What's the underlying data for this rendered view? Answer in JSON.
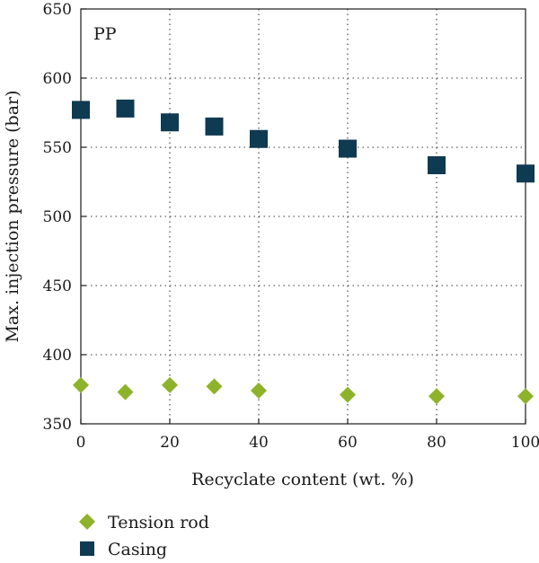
{
  "chart_data": {
    "type": "scatter",
    "panel_label": "PP",
    "xlabel": "Recyclate content (wt. %)",
    "ylabel": "Max. injection pressure (bar)",
    "xlim": [
      0,
      100
    ],
    "ylim": [
      350,
      650
    ],
    "x_ticks": [
      0,
      20,
      40,
      60,
      80,
      100
    ],
    "y_ticks": [
      350,
      400,
      450,
      500,
      550,
      600,
      650
    ],
    "grid": true,
    "legend_position": "below",
    "series": [
      {
        "name": "Tension rod",
        "marker": "diamond",
        "color": "#8db32a",
        "x": [
          0,
          10,
          20,
          30,
          40,
          60,
          80,
          100
        ],
        "y": [
          378,
          373,
          378,
          377,
          374,
          371,
          370,
          370
        ]
      },
      {
        "name": "Casing",
        "marker": "square",
        "color": "#0e3a52",
        "x": [
          0,
          10,
          20,
          30,
          40,
          60,
          80,
          100
        ],
        "y": [
          577,
          578,
          568,
          565,
          556,
          549,
          537,
          531
        ]
      }
    ]
  }
}
